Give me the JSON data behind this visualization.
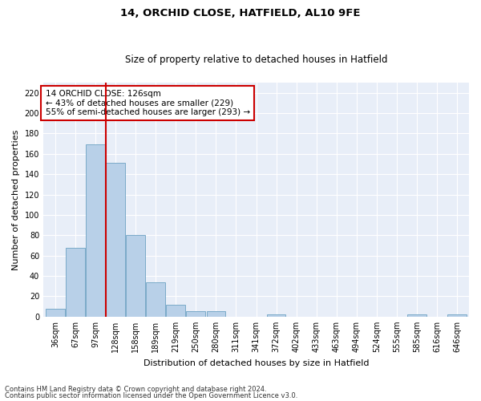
{
  "title1": "14, ORCHID CLOSE, HATFIELD, AL10 9FE",
  "title2": "Size of property relative to detached houses in Hatfield",
  "xlabel": "Distribution of detached houses by size in Hatfield",
  "ylabel": "Number of detached properties",
  "categories": [
    "36sqm",
    "67sqm",
    "97sqm",
    "128sqm",
    "158sqm",
    "189sqm",
    "219sqm",
    "250sqm",
    "280sqm",
    "311sqm",
    "341sqm",
    "372sqm",
    "402sqm",
    "433sqm",
    "463sqm",
    "494sqm",
    "524sqm",
    "555sqm",
    "585sqm",
    "616sqm",
    "646sqm"
  ],
  "values": [
    8,
    68,
    169,
    151,
    80,
    34,
    12,
    5,
    5,
    0,
    0,
    2,
    0,
    0,
    0,
    0,
    0,
    0,
    2,
    0,
    2
  ],
  "bar_color": "#b8d0e8",
  "bar_edge_color": "#7aaac8",
  "vline_color": "#cc0000",
  "annotation_text": "14 ORCHID CLOSE: 126sqm\n← 43% of detached houses are smaller (229)\n55% of semi-detached houses are larger (293) →",
  "annotation_box_color": "#ffffff",
  "annotation_box_edge": "#cc0000",
  "footnote1": "Contains HM Land Registry data © Crown copyright and database right 2024.",
  "footnote2": "Contains public sector information licensed under the Open Government Licence v3.0.",
  "ylim": [
    0,
    230
  ],
  "yticks": [
    0,
    20,
    40,
    60,
    80,
    100,
    120,
    140,
    160,
    180,
    200,
    220
  ],
  "bg_color": "#e8eef8",
  "grid_color": "#ffffff",
  "fig_bg": "#ffffff"
}
